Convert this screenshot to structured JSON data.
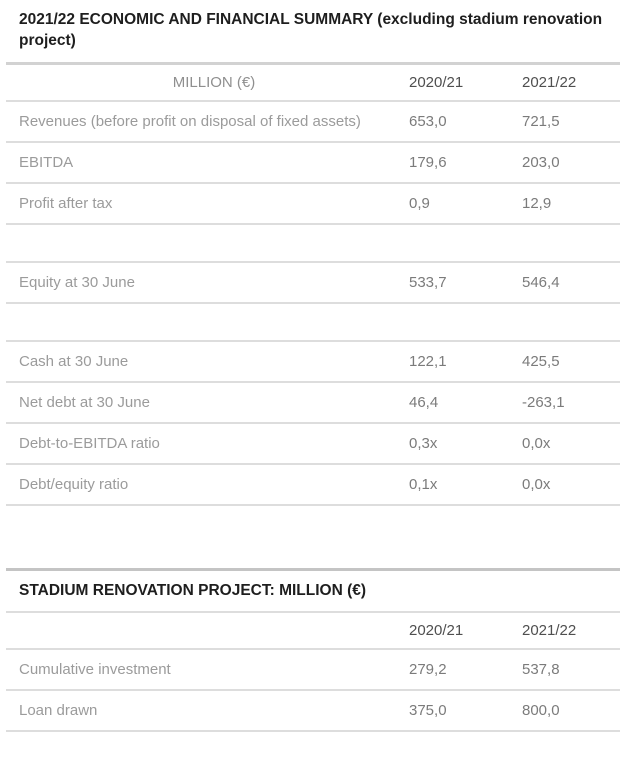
{
  "summary_table": {
    "title": "2021/22 ECONOMIC AND FINANCIAL SUMMARY (excluding stadium renovation project)",
    "columns": {
      "metric": "MILLION (€)",
      "year1": "2020/21",
      "year2": "2021/22"
    },
    "rows": [
      {
        "label": "Revenues (before profit on disposal of fixed assets)",
        "year1": "653,0",
        "year2": "721,5"
      },
      {
        "label": "EBITDA",
        "year1": "179,6",
        "year2": "203,0"
      },
      {
        "label": "Profit after tax",
        "year1": "0,9",
        "year2": "12,9"
      },
      {
        "label": "",
        "year1": "",
        "year2": ""
      },
      {
        "label": "Equity at 30 June",
        "year1": "533,7",
        "year2": "546,4"
      },
      {
        "label": "",
        "year1": "",
        "year2": ""
      },
      {
        "label": "Cash at 30 June",
        "year1": "122,1",
        "year2": "425,5"
      },
      {
        "label": "Net debt at 30 June",
        "year1": "46,4",
        "year2": "-263,1"
      },
      {
        "label": "Debt-to-EBITDA ratio",
        "year1": "0,3x",
        "year2": "0,0x"
      },
      {
        "label": "Debt/equity ratio",
        "year1": "0,1x",
        "year2": "0,0x"
      }
    ]
  },
  "stadium_table": {
    "title": "STADIUM RENOVATION PROJECT: MILLION (€)",
    "columns": {
      "metric": "",
      "year1": "2020/21",
      "year2": "2021/22"
    },
    "rows": [
      {
        "label": "Cumulative investment",
        "year1": "279,2",
        "year2": "537,8"
      },
      {
        "label": "Loan drawn",
        "year1": "375,0",
        "year2": "800,0"
      }
    ]
  },
  "colors": {
    "title_text": "#1e1e1e",
    "label_text": "#9b9b9b",
    "value_text": "#7b7b7b",
    "year_header_text": "#4f4f4f",
    "divider": "#dddddd",
    "divider_strong": "#c4c4c4",
    "background": "#ffffff"
  }
}
